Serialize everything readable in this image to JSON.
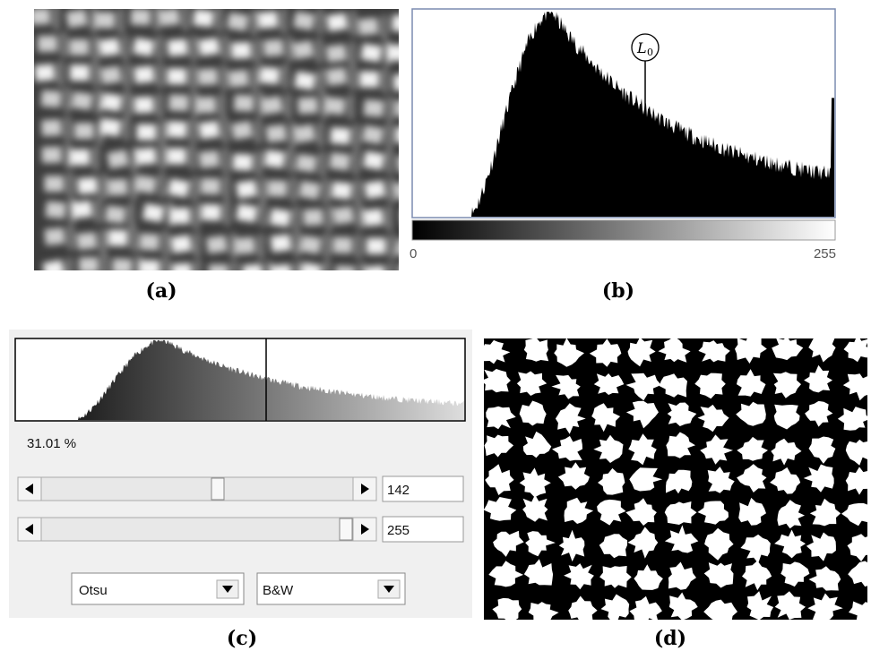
{
  "panels": {
    "a": {
      "label": "(a)"
    },
    "b": {
      "label": "(b)",
      "annotation": "L",
      "annotation_subscript": "0",
      "axis_start": "0",
      "axis_end": "255"
    },
    "c": {
      "label": "(c)",
      "percentage": "31.01 %",
      "lower_value": "142",
      "upper_value": "255",
      "method": "Otsu",
      "mode": "B&W"
    },
    "d": {
      "label": "(d)"
    }
  }
}
